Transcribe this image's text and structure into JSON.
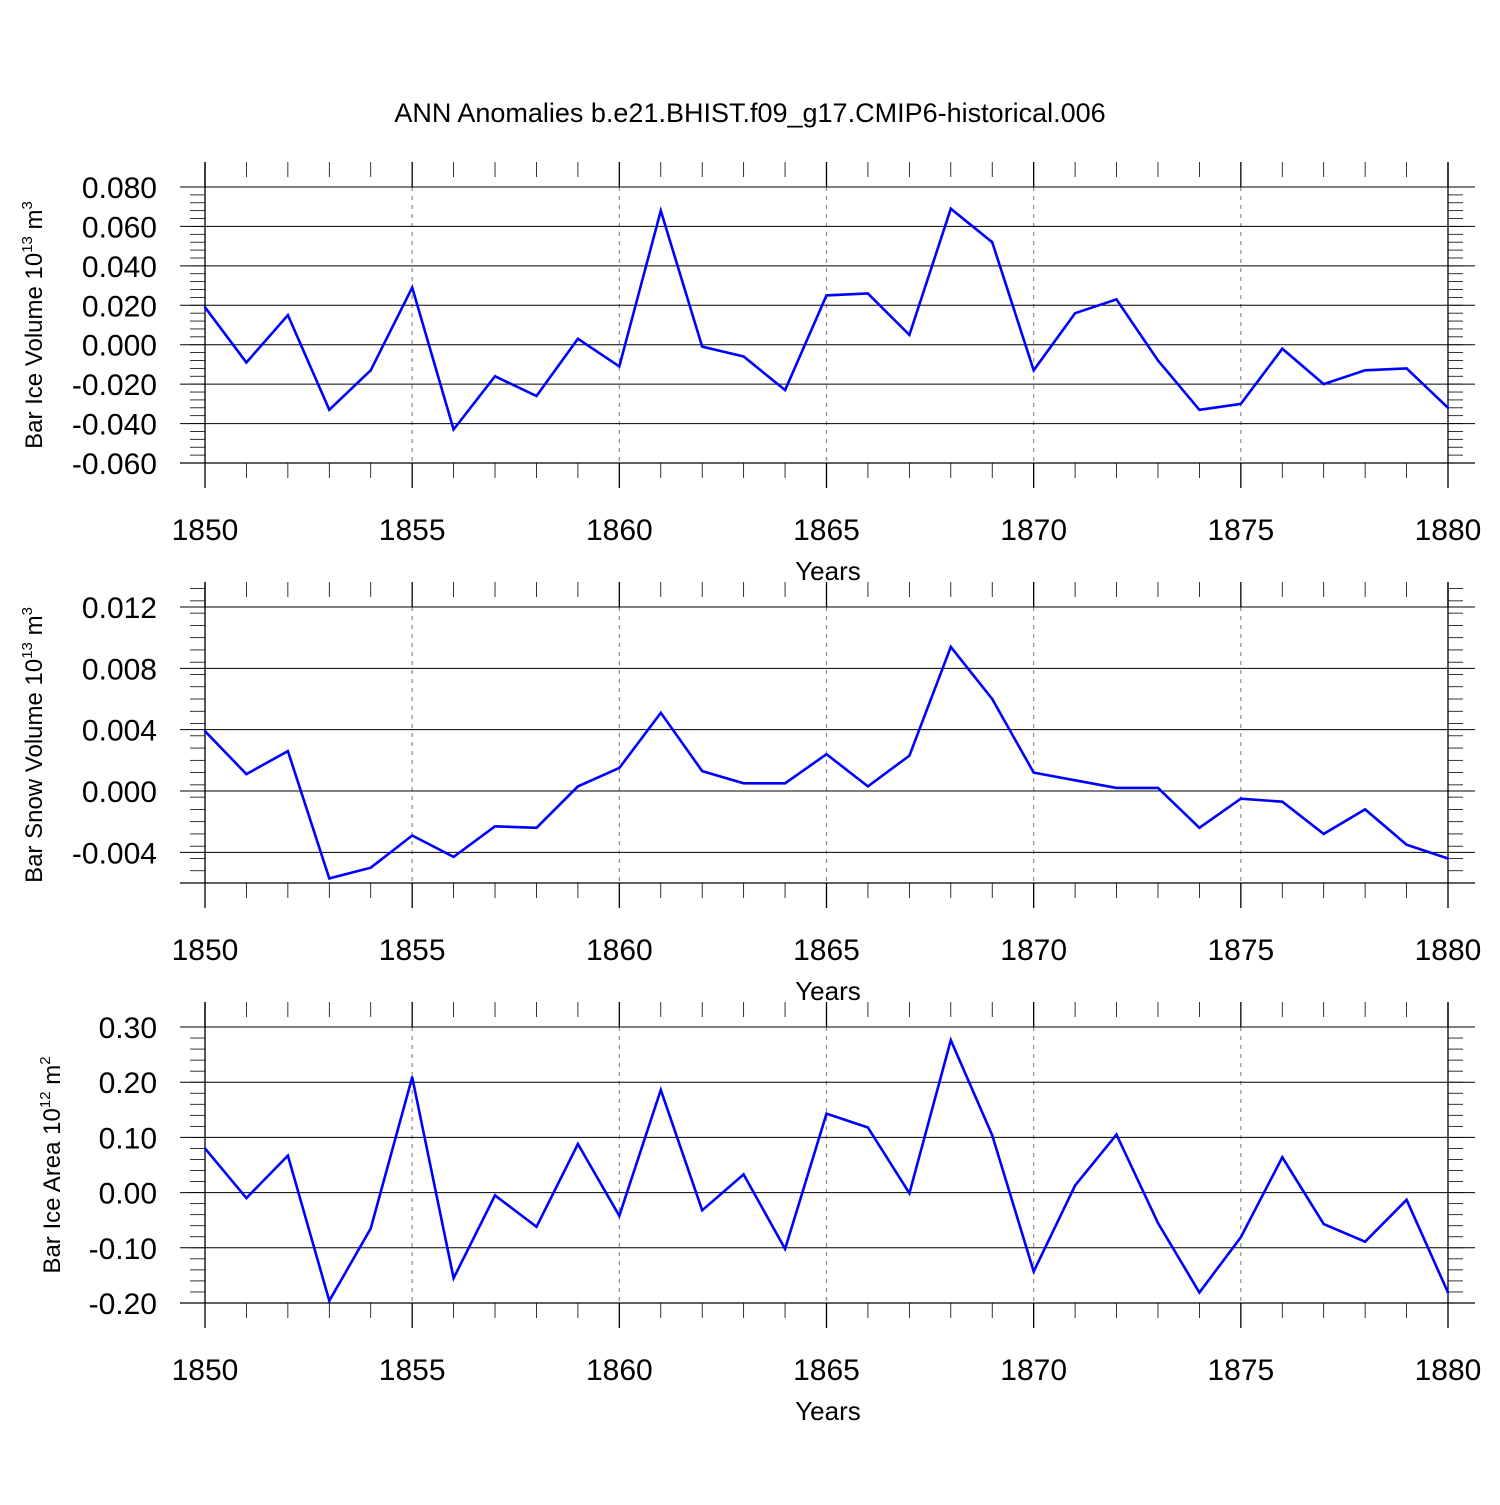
{
  "figure": {
    "title": "ANN Anomalies b.e21.BHIST.f09_g17.CMIP6-historical.006"
  },
  "colors": {
    "line": "#0000ff",
    "axis": "#000000",
    "grid": "#8c8c8c"
  },
  "chart_data": [
    {
      "type": "line",
      "title": "",
      "xlabel": "Years",
      "ylabel": "Bar Ice Volume",
      "ylabel_unit_base": "10",
      "ylabel_unit_exp": "13",
      "ylabel_unit_m": "m",
      "ylabel_unit_m_exp": "3",
      "xlim": [
        1850,
        1880
      ],
      "ylim": [
        -0.06,
        0.08
      ],
      "xticks": [
        1850,
        1855,
        1860,
        1865,
        1870,
        1875,
        1880
      ],
      "xtick_labels": [
        "1850",
        "1855",
        "1860",
        "1865",
        "1870",
        "1875",
        "1880"
      ],
      "yticks": [
        -0.06,
        -0.04,
        -0.02,
        0.0,
        0.02,
        0.04,
        0.06,
        0.08
      ],
      "ytick_labels": [
        "-0.060",
        "-0.040",
        "-0.020",
        "0.000",
        "0.020",
        "0.040",
        "0.060",
        "0.080"
      ],
      "grid": "vertical dashed at major x ticks",
      "x": [
        1850,
        1851,
        1852,
        1853,
        1854,
        1855,
        1856,
        1857,
        1858,
        1859,
        1860,
        1861,
        1862,
        1863,
        1864,
        1865,
        1866,
        1867,
        1868,
        1869,
        1870,
        1871,
        1872,
        1873,
        1874,
        1875,
        1876,
        1877,
        1878,
        1879,
        1880
      ],
      "y": [
        0.019,
        -0.009,
        0.015,
        -0.033,
        -0.013,
        0.029,
        -0.043,
        -0.016,
        -0.026,
        0.003,
        -0.011,
        0.068,
        -0.001,
        -0.006,
        -0.023,
        0.025,
        0.026,
        0.005,
        0.069,
        0.052,
        -0.013,
        0.016,
        0.023,
        -0.008,
        -0.033,
        -0.03,
        -0.002,
        -0.02,
        -0.013,
        -0.012,
        -0.032
      ]
    },
    {
      "type": "line",
      "title": "",
      "xlabel": "Years",
      "ylabel": "Bar Snow Volume",
      "ylabel_unit_base": "10",
      "ylabel_unit_exp": "13",
      "ylabel_unit_m": "m",
      "ylabel_unit_m_exp": "3",
      "xlim": [
        1850,
        1880
      ],
      "ylim": [
        -0.006,
        0.0136
      ],
      "xticks": [
        1850,
        1855,
        1860,
        1865,
        1870,
        1875,
        1880
      ],
      "xtick_labels": [
        "1850",
        "1855",
        "1860",
        "1865",
        "1870",
        "1875",
        "1880"
      ],
      "yticks": [
        -0.004,
        0.0,
        0.004,
        0.008,
        0.012
      ],
      "ytick_labels": [
        "-0.004",
        "0.000",
        "0.004",
        "0.008",
        "0.012"
      ],
      "grid": "vertical dashed at major x ticks",
      "x": [
        1850,
        1851,
        1852,
        1853,
        1854,
        1855,
        1856,
        1857,
        1858,
        1859,
        1860,
        1861,
        1862,
        1863,
        1864,
        1865,
        1866,
        1867,
        1868,
        1869,
        1870,
        1871,
        1872,
        1873,
        1874,
        1875,
        1876,
        1877,
        1878,
        1879,
        1880
      ],
      "y": [
        0.0039,
        0.0011,
        0.0026,
        -0.0057,
        -0.005,
        -0.0029,
        -0.0043,
        -0.0023,
        -0.0024,
        0.0003,
        0.0015,
        0.0051,
        0.0013,
        0.0005,
        0.0005,
        0.0024,
        0.0003,
        0.0023,
        0.0094,
        0.006,
        0.0012,
        0.0007,
        0.0002,
        0.0002,
        -0.0024,
        -0.0005,
        -0.0007,
        -0.0028,
        -0.0012,
        -0.0035,
        -0.0044
      ]
    },
    {
      "type": "line",
      "title": "",
      "xlabel": "Years",
      "ylabel": "Bar Ice Area",
      "ylabel_unit_base": "10",
      "ylabel_unit_exp": "12",
      "ylabel_unit_m": "m",
      "ylabel_unit_m_exp": "2",
      "xlim": [
        1850,
        1880
      ],
      "ylim": [
        -0.2,
        0.3
      ],
      "xticks": [
        1850,
        1855,
        1860,
        1865,
        1870,
        1875,
        1880
      ],
      "xtick_labels": [
        "1850",
        "1855",
        "1860",
        "1865",
        "1870",
        "1875",
        "1880"
      ],
      "yticks": [
        -0.2,
        -0.1,
        0.0,
        0.1,
        0.2,
        0.3
      ],
      "ytick_labels": [
        "-0.20",
        "-0.10",
        "0.00",
        "0.10",
        "0.20",
        "0.30"
      ],
      "grid": "vertical dashed at major x ticks",
      "x": [
        1850,
        1851,
        1852,
        1853,
        1854,
        1855,
        1856,
        1857,
        1858,
        1859,
        1860,
        1861,
        1862,
        1863,
        1864,
        1865,
        1866,
        1867,
        1868,
        1869,
        1870,
        1871,
        1872,
        1873,
        1874,
        1875,
        1876,
        1877,
        1878,
        1879,
        1880
      ],
      "y": [
        0.08,
        -0.01,
        0.067,
        -0.196,
        -0.065,
        0.209,
        -0.155,
        -0.005,
        -0.062,
        0.088,
        -0.042,
        0.186,
        -0.032,
        0.033,
        -0.102,
        0.143,
        0.118,
        -0.001,
        0.276,
        0.104,
        -0.143,
        0.013,
        0.105,
        -0.055,
        -0.181,
        -0.081,
        0.064,
        -0.057,
        -0.089,
        -0.013,
        -0.181
      ]
    }
  ]
}
